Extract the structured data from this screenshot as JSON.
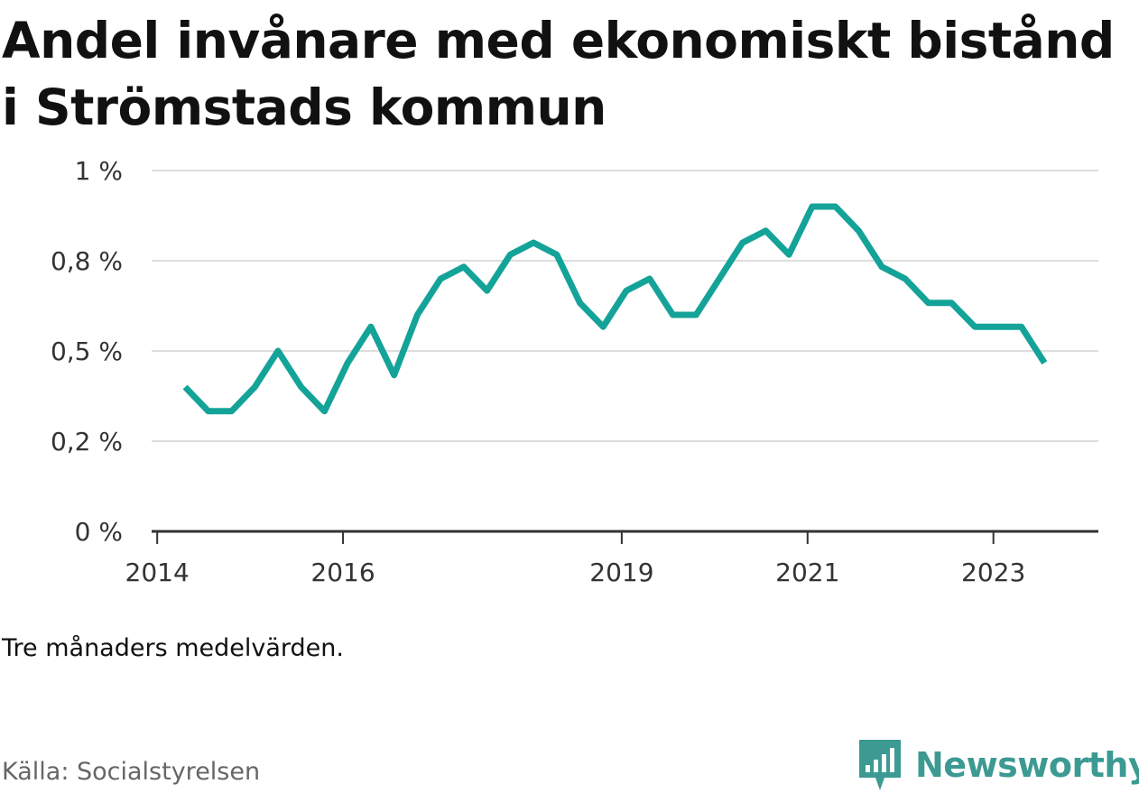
{
  "title": "Andel invånare med ekonomiskt bistånd i Strömstads kommun",
  "note": "Tre månaders medelvärden.",
  "source": "Källa: Socialstyrelsen",
  "logo": {
    "text": "Newsworthy",
    "icon": "newsworthy-logo-icon"
  },
  "colors": {
    "line": "#14a398",
    "grid": "#dddddd",
    "axis": "#333333",
    "logo": "#3c9a93"
  },
  "chart_data": {
    "type": "line",
    "title": "Andel invånare med ekonomiskt bistånd i Strömstads kommun",
    "xlabel": "",
    "ylabel": "",
    "ylim": [
      0,
      1.0
    ],
    "xlim": [
      2013.94,
      2024.13
    ],
    "grid": true,
    "y_ticks": [
      {
        "value": 0,
        "label": "0 %"
      },
      {
        "value": 0.25,
        "label": "0,2 %"
      },
      {
        "value": 0.5,
        "label": "0,5 %"
      },
      {
        "value": 0.75,
        "label": "0,8 %"
      },
      {
        "value": 1.0,
        "label": "1 %"
      }
    ],
    "x_ticks": [
      {
        "value": 2014,
        "label": "2014"
      },
      {
        "value": 2016,
        "label": "2016"
      },
      {
        "value": 2019,
        "label": "2019"
      },
      {
        "value": 2021,
        "label": "2021"
      },
      {
        "value": 2023,
        "label": "2023"
      }
    ],
    "series": [
      {
        "x": [
          2014.3,
          2014.55,
          2014.8,
          2015.05,
          2015.3,
          2015.55,
          2015.8,
          2016.05,
          2016.3,
          2016.55,
          2016.8,
          2017.05,
          2017.3,
          2017.55,
          2017.8,
          2018.05,
          2018.3,
          2018.55,
          2018.8,
          2019.05,
          2019.3,
          2019.55,
          2019.8,
          2020.05,
          2020.3,
          2020.55,
          2020.8,
          2021.05,
          2021.3,
          2021.55,
          2021.8,
          2022.05,
          2022.3,
          2022.55,
          2022.8,
          2023.05,
          2023.3,
          2023.55
        ],
        "values": [
          0.4,
          0.333,
          0.333,
          0.4,
          0.5,
          0.4,
          0.333,
          0.467,
          0.567,
          0.433,
          0.6,
          0.7,
          0.733,
          0.667,
          0.767,
          0.8,
          0.767,
          0.633,
          0.567,
          0.667,
          0.7,
          0.6,
          0.6,
          0.7,
          0.8,
          0.833,
          0.767,
          0.9,
          0.9,
          0.833,
          0.733,
          0.7,
          0.633,
          0.633,
          0.567,
          0.567,
          0.567,
          0.467
        ]
      }
    ]
  }
}
